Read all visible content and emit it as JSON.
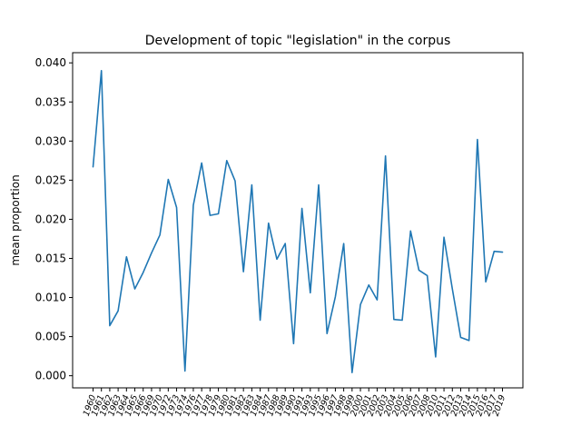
{
  "chart_data": {
    "type": "line",
    "title": "Development of topic \"legislation\" in the corpus",
    "xlabel": "",
    "ylabel": "mean proportion",
    "ylim": [
      -0.00155,
      0.0413
    ],
    "yticks": [
      "0.000",
      "0.005",
      "0.010",
      "0.015",
      "0.020",
      "0.025",
      "0.030",
      "0.035",
      "0.040"
    ],
    "ytick_values": [
      0.0,
      0.005,
      0.01,
      0.015,
      0.02,
      0.025,
      0.03,
      0.035,
      0.04
    ],
    "line_color": "#1f77b4",
    "grid": false,
    "categories": [
      "1960",
      "1961",
      "1962",
      "1963",
      "1964",
      "1965",
      "1966",
      "1969",
      "1970",
      "1972",
      "1973",
      "1974",
      "1976",
      "1977",
      "1978",
      "1979",
      "1980",
      "1981",
      "1982",
      "1983",
      "1984",
      "1987",
      "1988",
      "1989",
      "1990",
      "1991",
      "1993",
      "1995",
      "1996",
      "1997",
      "1998",
      "1999",
      "2000",
      "2001",
      "2002",
      "2003",
      "2004",
      "2005",
      "2006",
      "2007",
      "2008",
      "2010",
      "2011",
      "2012",
      "2013",
      "2014",
      "2015",
      "2016",
      "2017",
      "2019"
    ],
    "values": [
      0.0267,
      0.039,
      0.0064,
      0.0083,
      0.0152,
      0.0111,
      0.0132,
      0.0157,
      0.018,
      0.0251,
      0.0215,
      0.0006,
      0.0218,
      0.0272,
      0.0205,
      0.0207,
      0.0275,
      0.0249,
      0.0133,
      0.0244,
      0.0071,
      0.0195,
      0.0149,
      0.0169,
      0.0041,
      0.0214,
      0.0106,
      0.0244,
      0.0054,
      0.0101,
      0.0169,
      0.0004,
      0.0091,
      0.0116,
      0.0097,
      0.0281,
      0.0072,
      0.0071,
      0.0185,
      0.0135,
      0.0128,
      0.0024,
      0.0177,
      0.0111,
      0.0049,
      0.0045,
      0.0302,
      0.012,
      0.0159,
      0.0158
    ]
  }
}
